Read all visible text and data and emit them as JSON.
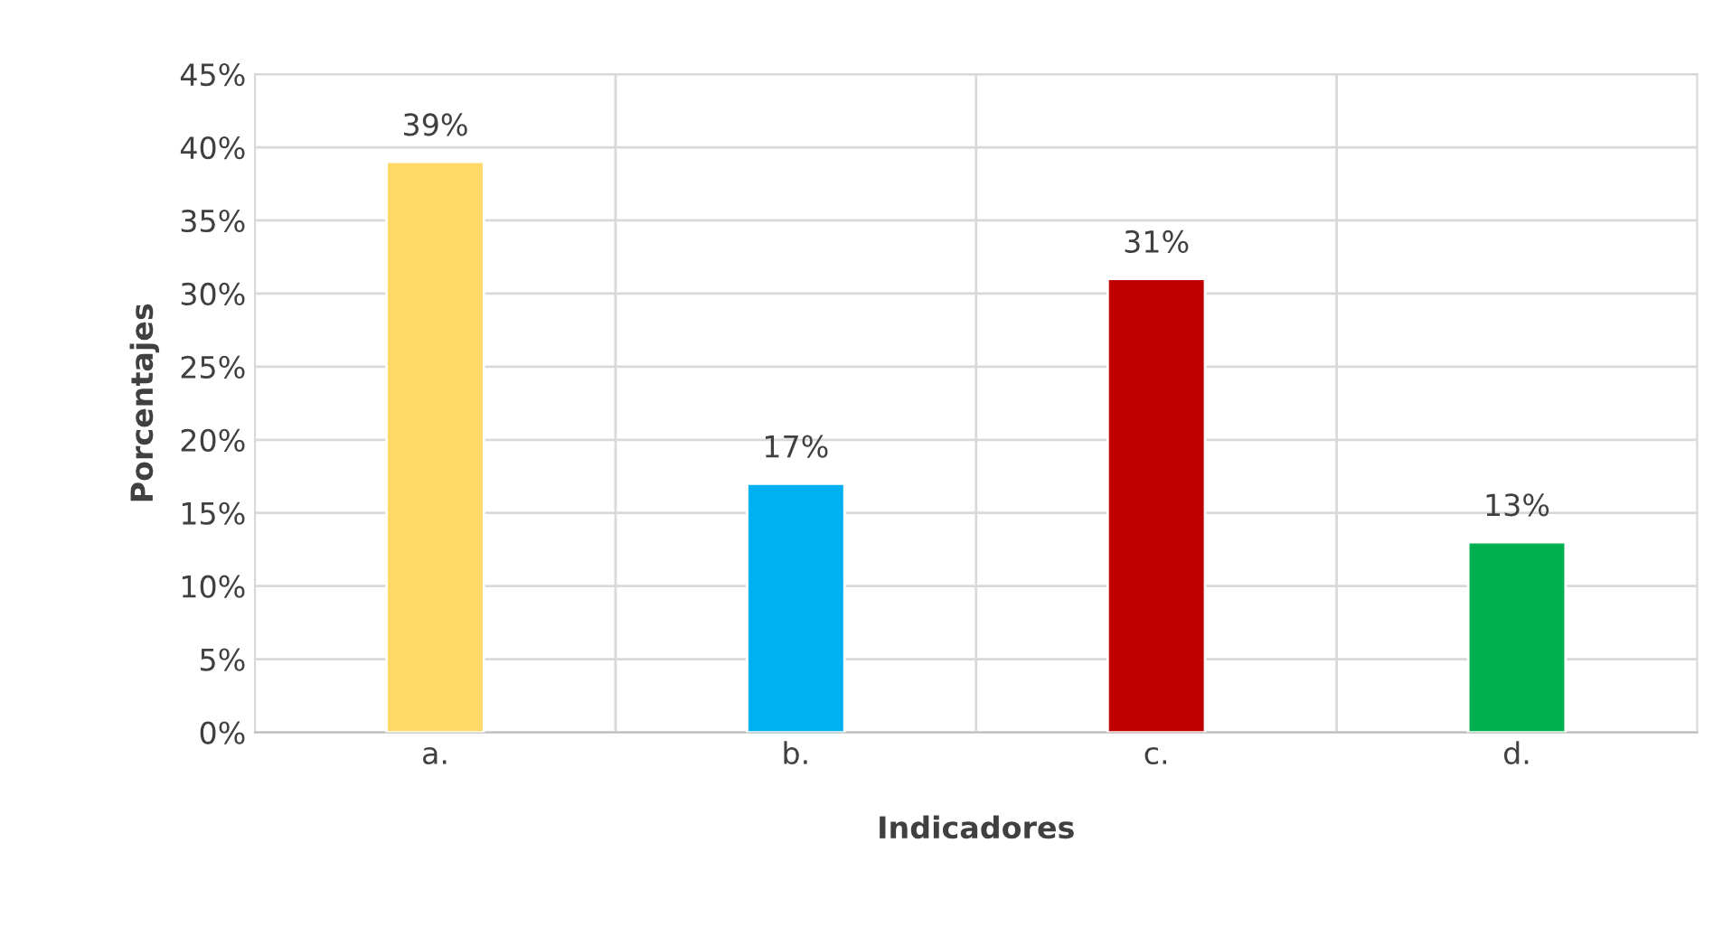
{
  "chart_data": {
    "type": "bar",
    "xlabel": "Indicadores",
    "ylabel": "Porcentajes",
    "categories": [
      "a.",
      "b.",
      "c.",
      "d."
    ],
    "values": [
      39,
      17,
      31,
      13
    ],
    "colors": [
      "#ffd966",
      "#00b0f0",
      "#c00000",
      "#00b050"
    ],
    "value_labels": [
      "39%",
      "17%",
      "31%",
      "13%"
    ],
    "ylim": [
      0,
      45
    ],
    "yticks": [
      {
        "value": 0,
        "label": "0%"
      },
      {
        "value": 5,
        "label": "5%"
      },
      {
        "value": 10,
        "label": "10%"
      },
      {
        "value": 15,
        "label": "15%"
      },
      {
        "value": 20,
        "label": "20%"
      },
      {
        "value": 25,
        "label": "25%"
      },
      {
        "value": 30,
        "label": "30%"
      },
      {
        "value": 35,
        "label": "35%"
      },
      {
        "value": 40,
        "label": "40%"
      },
      {
        "value": 45,
        "label": "45%"
      }
    ],
    "grid": true,
    "legend": false
  }
}
